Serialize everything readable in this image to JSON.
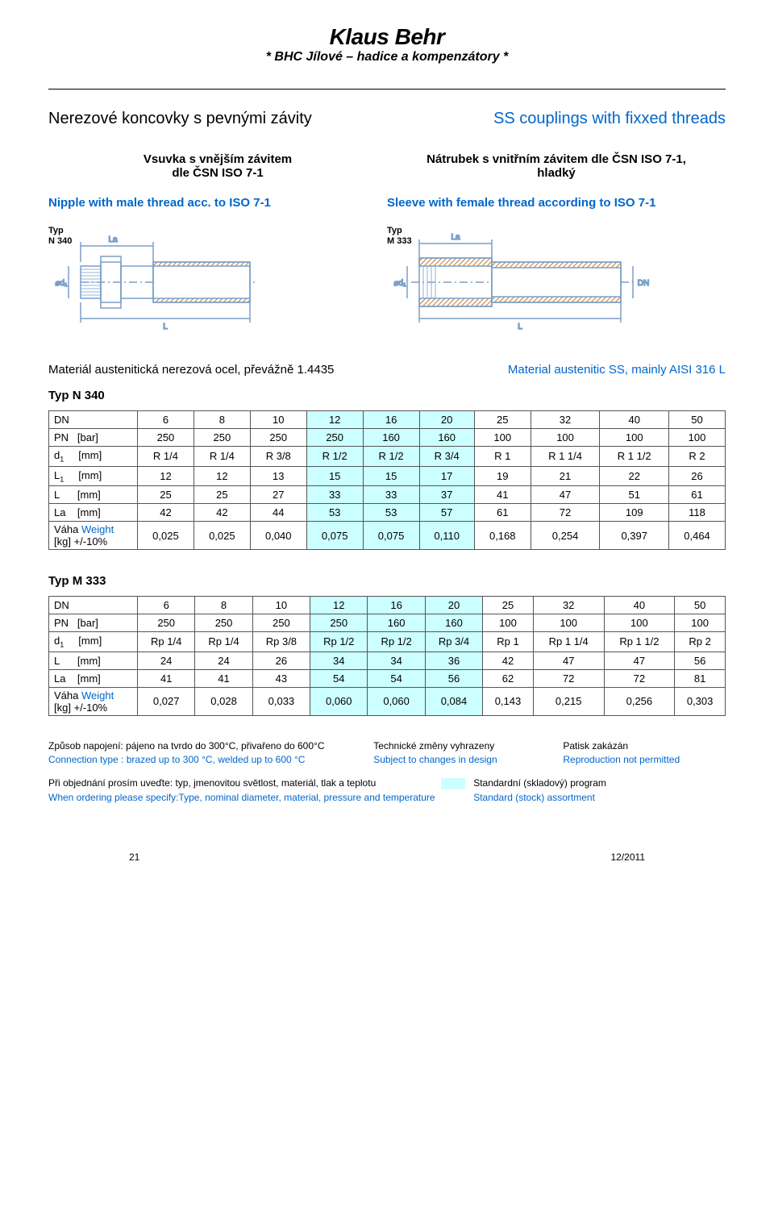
{
  "brand": {
    "name": "Klaus Behr",
    "sub": "* BHC Jílové – hadice a kompenzátory *"
  },
  "titles": {
    "main_cz": "Nerezové koncovky s pevnými závity",
    "main_en": "SS couplings with fixxed threads",
    "left_cz_l1": "Vsuvka s vnějším závitem",
    "left_cz_l2": "dle ČSN ISO 7-1",
    "right_cz_l1": "Nátrubek s vnitřním závitem dle ČSN ISO 7-1,",
    "right_cz_l2": "hladký",
    "left_en": "Nipple with male thread acc. to ISO 7-1",
    "right_en": "Sleeve with female thread according to ISO 7-1",
    "diag_left_l1": "Typ",
    "diag_left_l2": "N 340",
    "diag_right_l1": "Typ",
    "diag_right_l2": "M 333"
  },
  "material": {
    "cz": "Materiál austenitická nerezová ocel, převážně 1.4435",
    "en": "Material austenitic SS, mainly AISI 316 L"
  },
  "colors": {
    "blue": "#0066cc",
    "highlight": "#ccffff",
    "border": "#555555",
    "diagram_stroke": "#7a9fc9",
    "hatch": "#c97a2a"
  },
  "table_n340": {
    "label": "Typ N 340",
    "rows": [
      {
        "label": "DN",
        "cells": [
          "6",
          "8",
          "10",
          "12",
          "16",
          "20",
          "25",
          "32",
          "40",
          "50"
        ],
        "hdr": true
      },
      {
        "label": "PN   [bar]",
        "cells": [
          "250",
          "250",
          "250",
          "250",
          "160",
          "160",
          "100",
          "100",
          "100",
          "100"
        ]
      },
      {
        "label": "d<sub class='sub1'>1</sub>     [mm]",
        "cells": [
          "R 1/4",
          "R 1/4",
          "R 3/8",
          "R 1/2",
          "R 1/2",
          "R 3/4",
          "R 1",
          "R 1 1/4",
          "R 1 1/2",
          "R 2"
        ]
      },
      {
        "label": "L<sub class='sub1'>1</sub>     [mm]",
        "cells": [
          "12",
          "12",
          "13",
          "15",
          "15",
          "17",
          "19",
          "21",
          "22",
          "26"
        ]
      },
      {
        "label": "L      [mm]",
        "cells": [
          "25",
          "25",
          "27",
          "33",
          "33",
          "37",
          "41",
          "47",
          "51",
          "61"
        ]
      },
      {
        "label": "La    [mm]",
        "cells": [
          "42",
          "42",
          "44",
          "53",
          "53",
          "57",
          "61",
          "72",
          "109",
          "118"
        ]
      },
      {
        "label": "Váha <span class='wt'>Weight</span><br>[kg] +/-10%",
        "cells": [
          "0,025",
          "0,025",
          "0,040",
          "0,075",
          "0,075",
          "0,110",
          "0,168",
          "0,254",
          "0,397",
          "0,464"
        ]
      }
    ],
    "highlight_cols": [
      3,
      4,
      5
    ]
  },
  "table_m333": {
    "label": "Typ M 333",
    "rows": [
      {
        "label": "DN",
        "cells": [
          "6",
          "8",
          "10",
          "12",
          "16",
          "20",
          "25",
          "32",
          "40",
          "50"
        ],
        "hdr": true
      },
      {
        "label": "PN   [bar]",
        "cells": [
          "250",
          "250",
          "250",
          "250",
          "160",
          "160",
          "100",
          "100",
          "100",
          "100"
        ]
      },
      {
        "label": "d<sub class='sub1'>1</sub>     [mm]",
        "cells": [
          "Rp 1/4",
          "Rp 1/4",
          "Rp 3/8",
          "Rp 1/2",
          "Rp 1/2",
          "Rp 3/4",
          "Rp 1",
          "Rp 1 1/4",
          "Rp 1 1/2",
          "Rp 2"
        ]
      },
      {
        "label": "L      [mm]",
        "cells": [
          "24",
          "24",
          "26",
          "34",
          "34",
          "36",
          "42",
          "47",
          "47",
          "56"
        ]
      },
      {
        "label": "La    [mm]",
        "cells": [
          "41",
          "41",
          "43",
          "54",
          "54",
          "56",
          "62",
          "72",
          "72",
          "81"
        ]
      },
      {
        "label": "Váha <span class='wt'>Weight</span><br>[kg] +/-10%",
        "cells": [
          "0,027",
          "0,028",
          "0,033",
          "0,060",
          "0,060",
          "0,084",
          "0,143",
          "0,215",
          "0,256",
          "0,303"
        ]
      }
    ],
    "highlight_cols": [
      3,
      4,
      5
    ]
  },
  "footer": {
    "r1c1": "Způsob napojení: pájeno na tvrdo do 300°C, přivařeno do 600°C",
    "r1c2": "Technické změny vyhrazeny",
    "r1c3": "Patisk zakázán",
    "r2c1": "Connection type : brazed up to 300 °C, welded up to 600 °C",
    "r2c2": "Subject to changes in design",
    "r2c3": "Reproduction not permitted",
    "r3c1": "Při objednání prosím uveďte: typ,  jmenovitou světlost, materiál, tlak a teplotu",
    "r3c3": "Standardní (skladový) program",
    "r4c1": "When ordering please specify:Type, nominal diameter, material, pressure and temperature",
    "r4c3": "Standard (stock) assortment"
  },
  "pgfoot": {
    "page": "21",
    "date": "12/2011"
  }
}
